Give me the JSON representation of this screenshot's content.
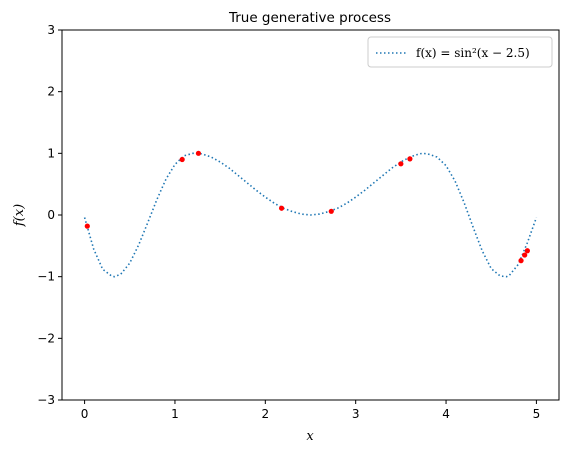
{
  "chart_data": {
    "type": "line",
    "title": "True generative process",
    "xlabel": "x",
    "ylabel": "f(x)",
    "xlim": [
      -0.25,
      5.25
    ],
    "ylim": [
      -3,
      3
    ],
    "xticks": [
      0,
      1,
      2,
      3,
      4,
      5
    ],
    "yticks": [
      -3,
      -2,
      -1,
      0,
      1,
      2,
      3
    ],
    "ytick_labels": [
      "−3",
      "−2",
      "−1",
      "0",
      "1",
      "2",
      "3"
    ],
    "grid": false,
    "legend": {
      "placement": "top-right",
      "entry": "f(x) = sin²(x − 2.5)"
    },
    "series": [
      {
        "name": "f(x) = sin²(x − 2.5)",
        "style": "dotted",
        "color": "#1f77b4",
        "x": [
          0,
          0.1,
          0.2,
          0.3,
          0.33,
          0.4,
          0.5,
          0.6,
          0.7,
          0.8,
          0.9,
          1.0,
          1.1,
          1.2,
          1.26,
          1.3,
          1.4,
          1.5,
          1.6,
          1.7,
          1.8,
          1.9,
          2.0,
          2.1,
          2.2,
          2.3,
          2.4,
          2.5,
          2.6,
          2.7,
          2.8,
          2.9,
          3.0,
          3.1,
          3.2,
          3.3,
          3.4,
          3.5,
          3.6,
          3.7,
          3.74,
          3.8,
          3.9,
          4.0,
          4.1,
          4.2,
          4.3,
          4.4,
          4.5,
          4.6,
          4.67,
          4.7,
          4.8,
          4.9,
          5.0
        ],
        "y": [
          -0.04,
          -0.55,
          -0.88,
          -0.99,
          -1.0,
          -0.96,
          -0.78,
          -0.48,
          -0.12,
          0.25,
          0.58,
          0.82,
          0.96,
          1.0,
          1.0,
          0.99,
          0.94,
          0.86,
          0.76,
          0.64,
          0.52,
          0.4,
          0.29,
          0.19,
          0.11,
          0.055,
          0.015,
          0.0,
          0.015,
          0.055,
          0.11,
          0.19,
          0.29,
          0.4,
          0.52,
          0.64,
          0.76,
          0.86,
          0.94,
          0.99,
          1.0,
          0.99,
          0.94,
          0.8,
          0.55,
          0.2,
          -0.2,
          -0.58,
          -0.87,
          -0.99,
          -1.0,
          -0.98,
          -0.8,
          -0.45,
          -0.04
        ]
      },
      {
        "name": "",
        "style": "points",
        "color": "#ff0000",
        "x": [
          0.03,
          1.08,
          1.26,
          2.18,
          2.73,
          3.5,
          3.6,
          4.83,
          4.87,
          4.9
        ],
        "y": [
          -0.18,
          0.9,
          1.0,
          0.11,
          0.06,
          0.83,
          0.91,
          -0.74,
          -0.65,
          -0.58
        ]
      }
    ]
  }
}
